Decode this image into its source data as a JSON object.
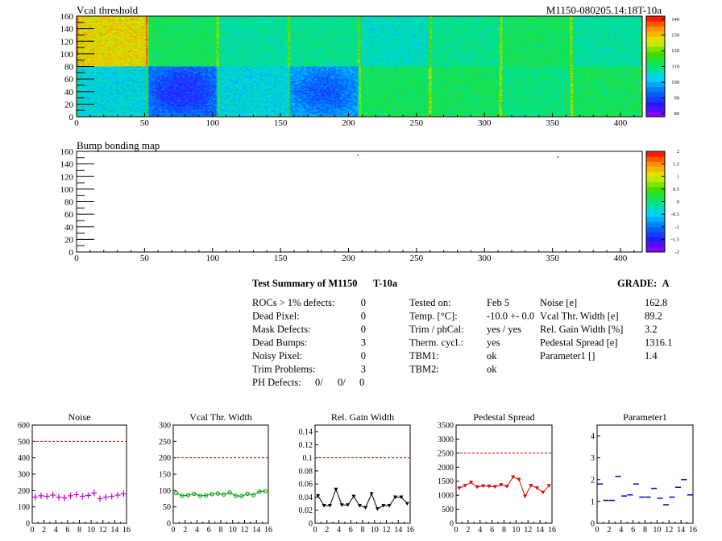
{
  "module_id": "M1150-080205.14:18T-10a",
  "chart_data": [
    {
      "type": "heatmap",
      "title": "Vcal threshold",
      "xlim": [
        0,
        416
      ],
      "ylim": [
        0,
        160
      ],
      "xticks": [
        0,
        50,
        100,
        150,
        200,
        250,
        300,
        350,
        400
      ],
      "yticks": [
        0,
        20,
        40,
        60,
        80,
        100,
        120,
        140,
        160
      ],
      "z_range": [
        78,
        142
      ],
      "z_ticks": [
        80,
        90,
        100,
        110,
        120,
        130,
        140
      ],
      "roc_columns": 52,
      "roc_rows": 80,
      "roc_mean_top": [
        128,
        112,
        108,
        109,
        106,
        109,
        112,
        108
      ],
      "roc_mean_bottom": [
        104,
        94,
        104,
        98,
        112,
        112,
        110,
        112
      ]
    },
    {
      "type": "heatmap",
      "title": "Bump bonding map",
      "xlim": [
        0,
        416
      ],
      "ylim": [
        0,
        160
      ],
      "xticks": [
        0,
        50,
        100,
        150,
        200,
        250,
        300,
        350,
        400
      ],
      "yticks": [
        0,
        20,
        40,
        60,
        80,
        100,
        120,
        140,
        160
      ],
      "z_range": [
        -2,
        2
      ],
      "z_ticks": [
        "-2",
        "-1.5",
        "-1",
        "-0.5",
        "0",
        "0.5",
        "1",
        "1.5",
        "2"
      ],
      "points": [
        {
          "x": 207,
          "y": 154
        },
        {
          "x": 354,
          "y": 151
        }
      ]
    },
    {
      "type": "scatter",
      "title": "Noise",
      "color": "#cc00cc",
      "marker": "cross",
      "xlim": [
        0,
        16
      ],
      "ylim": [
        0,
        600
      ],
      "xticks": [
        0,
        2,
        4,
        6,
        8,
        10,
        12,
        14,
        16
      ],
      "yticks": [
        0,
        100,
        200,
        300,
        400,
        500,
        600
      ],
      "limit": 500,
      "x": [
        0,
        1,
        2,
        3,
        4,
        5,
        6,
        7,
        8,
        9,
        10,
        11,
        12,
        13,
        14,
        15
      ],
      "values": [
        160,
        168,
        165,
        172,
        160,
        155,
        168,
        175,
        165,
        170,
        185,
        150,
        160,
        165,
        172,
        180
      ]
    },
    {
      "type": "line",
      "title": "Vcal Thr. Width",
      "color": "#009900",
      "marker": "circle",
      "xlim": [
        0,
        16
      ],
      "ylim": [
        0,
        300
      ],
      "xticks": [
        0,
        2,
        4,
        6,
        8,
        10,
        12,
        14,
        16
      ],
      "yticks": [
        0,
        50,
        100,
        150,
        200,
        250,
        300
      ],
      "limit": 200,
      "x": [
        0,
        1,
        2,
        3,
        4,
        5,
        6,
        7,
        8,
        9,
        10,
        11,
        12,
        13,
        14,
        15
      ],
      "values": [
        92,
        84,
        86,
        90,
        84,
        85,
        89,
        91,
        88,
        94,
        84,
        83,
        90,
        86,
        97,
        98
      ]
    },
    {
      "type": "line",
      "title": "Rel. Gain Width",
      "color": "#000000",
      "marker": "triangle-down",
      "xlim": [
        0,
        16
      ],
      "ylim": [
        0,
        0.15
      ],
      "xticks": [
        0,
        2,
        4,
        6,
        8,
        10,
        12,
        14,
        16
      ],
      "yticks": [
        "0",
        "0.02",
        "0.04",
        "0.06",
        "0.08",
        "0.1",
        "0.12",
        "0.14"
      ],
      "limit": 0.1,
      "x": [
        0,
        1,
        2,
        3,
        4,
        5,
        6,
        7,
        8,
        9,
        10,
        11,
        12,
        13,
        14,
        15
      ],
      "values": [
        0.042,
        0.027,
        0.027,
        0.052,
        0.028,
        0.028,
        0.041,
        0.027,
        0.024,
        0.045,
        0.022,
        0.027,
        0.027,
        0.04,
        0.04,
        0.03
      ]
    },
    {
      "type": "line",
      "title": "Pedestal Spread",
      "color": "#dd0000",
      "marker": "triangle-down",
      "xlim": [
        0,
        16
      ],
      "ylim": [
        0,
        3500
      ],
      "xticks": [
        0,
        2,
        4,
        6,
        8,
        10,
        12,
        14,
        16
      ],
      "yticks": [
        0,
        500,
        1000,
        1500,
        2000,
        2500,
        3000,
        3500
      ],
      "limit": 2500,
      "x": [
        0,
        1,
        2,
        3,
        4,
        5,
        6,
        7,
        8,
        9,
        10,
        11,
        12,
        13,
        14,
        15
      ],
      "values": [
        1250,
        1340,
        1460,
        1290,
        1330,
        1320,
        1300,
        1370,
        1310,
        1650,
        1560,
        960,
        1350,
        1260,
        1100,
        1340
      ]
    },
    {
      "type": "scatter",
      "title": "Parameter1",
      "color": "#0000cc",
      "marker": "hbar",
      "xlim": [
        0,
        16
      ],
      "ylim": [
        0,
        4.5
      ],
      "xticks": [
        0,
        2,
        4,
        6,
        8,
        10,
        12,
        14,
        16
      ],
      "yticks": [
        0,
        1,
        2,
        3,
        4
      ],
      "limit": null,
      "x": [
        0,
        1,
        2,
        3,
        4,
        5,
        6,
        7,
        8,
        9,
        10,
        11,
        12,
        13,
        14,
        15
      ],
      "values": [
        1.8,
        1.05,
        1.05,
        2.15,
        1.25,
        1.3,
        1.8,
        1.2,
        1.2,
        1.6,
        1.15,
        0.85,
        1.2,
        1.65,
        2.0,
        1.3
      ]
    }
  ],
  "summary": {
    "title": "Test Summary of M1150",
    "tag": "T-10a",
    "grade_label": "GRADE:",
    "grade": "A",
    "defects": [
      {
        "label": "ROCs > 1% defects:",
        "value": "0"
      },
      {
        "label": "Dead Pixel:",
        "value": "0"
      },
      {
        "label": "Mask Defects:",
        "value": "0"
      },
      {
        "label": "Dead Bumps:",
        "value": "3"
      },
      {
        "label": "Noisy Pixel:",
        "value": "0"
      },
      {
        "label": "Trim Problems:",
        "value": "3"
      }
    ],
    "ph_defects": {
      "label": "PH Defects:",
      "v1": "0/",
      "v2": "0/",
      "v3": "0",
      "c2": "#ff0000",
      "c3": "#0000ff"
    },
    "conditions": [
      {
        "label": "Tested on:",
        "value": "Feb 5"
      },
      {
        "label": "Temp. [°C]:",
        "value": "-10.0 +- 0.0"
      },
      {
        "label": "Trim / phCal:",
        "value": "yes / yes"
      },
      {
        "label": "Therm. cycl.:",
        "value": "yes"
      },
      {
        "label": "TBM1:",
        "value": "ok"
      },
      {
        "label": "TBM2:",
        "value": "ok"
      }
    ],
    "results": [
      {
        "label": "Noise [e]",
        "value": "162.8"
      },
      {
        "label": "Vcal Thr. Width [e]",
        "value": "89.2"
      },
      {
        "label": "Rel. Gain Width [%]",
        "value": "3.2"
      },
      {
        "label": "Pedestal Spread [e]",
        "value": "1316.1"
      },
      {
        "label": "Parameter1 []",
        "value": "1.4"
      }
    ]
  }
}
